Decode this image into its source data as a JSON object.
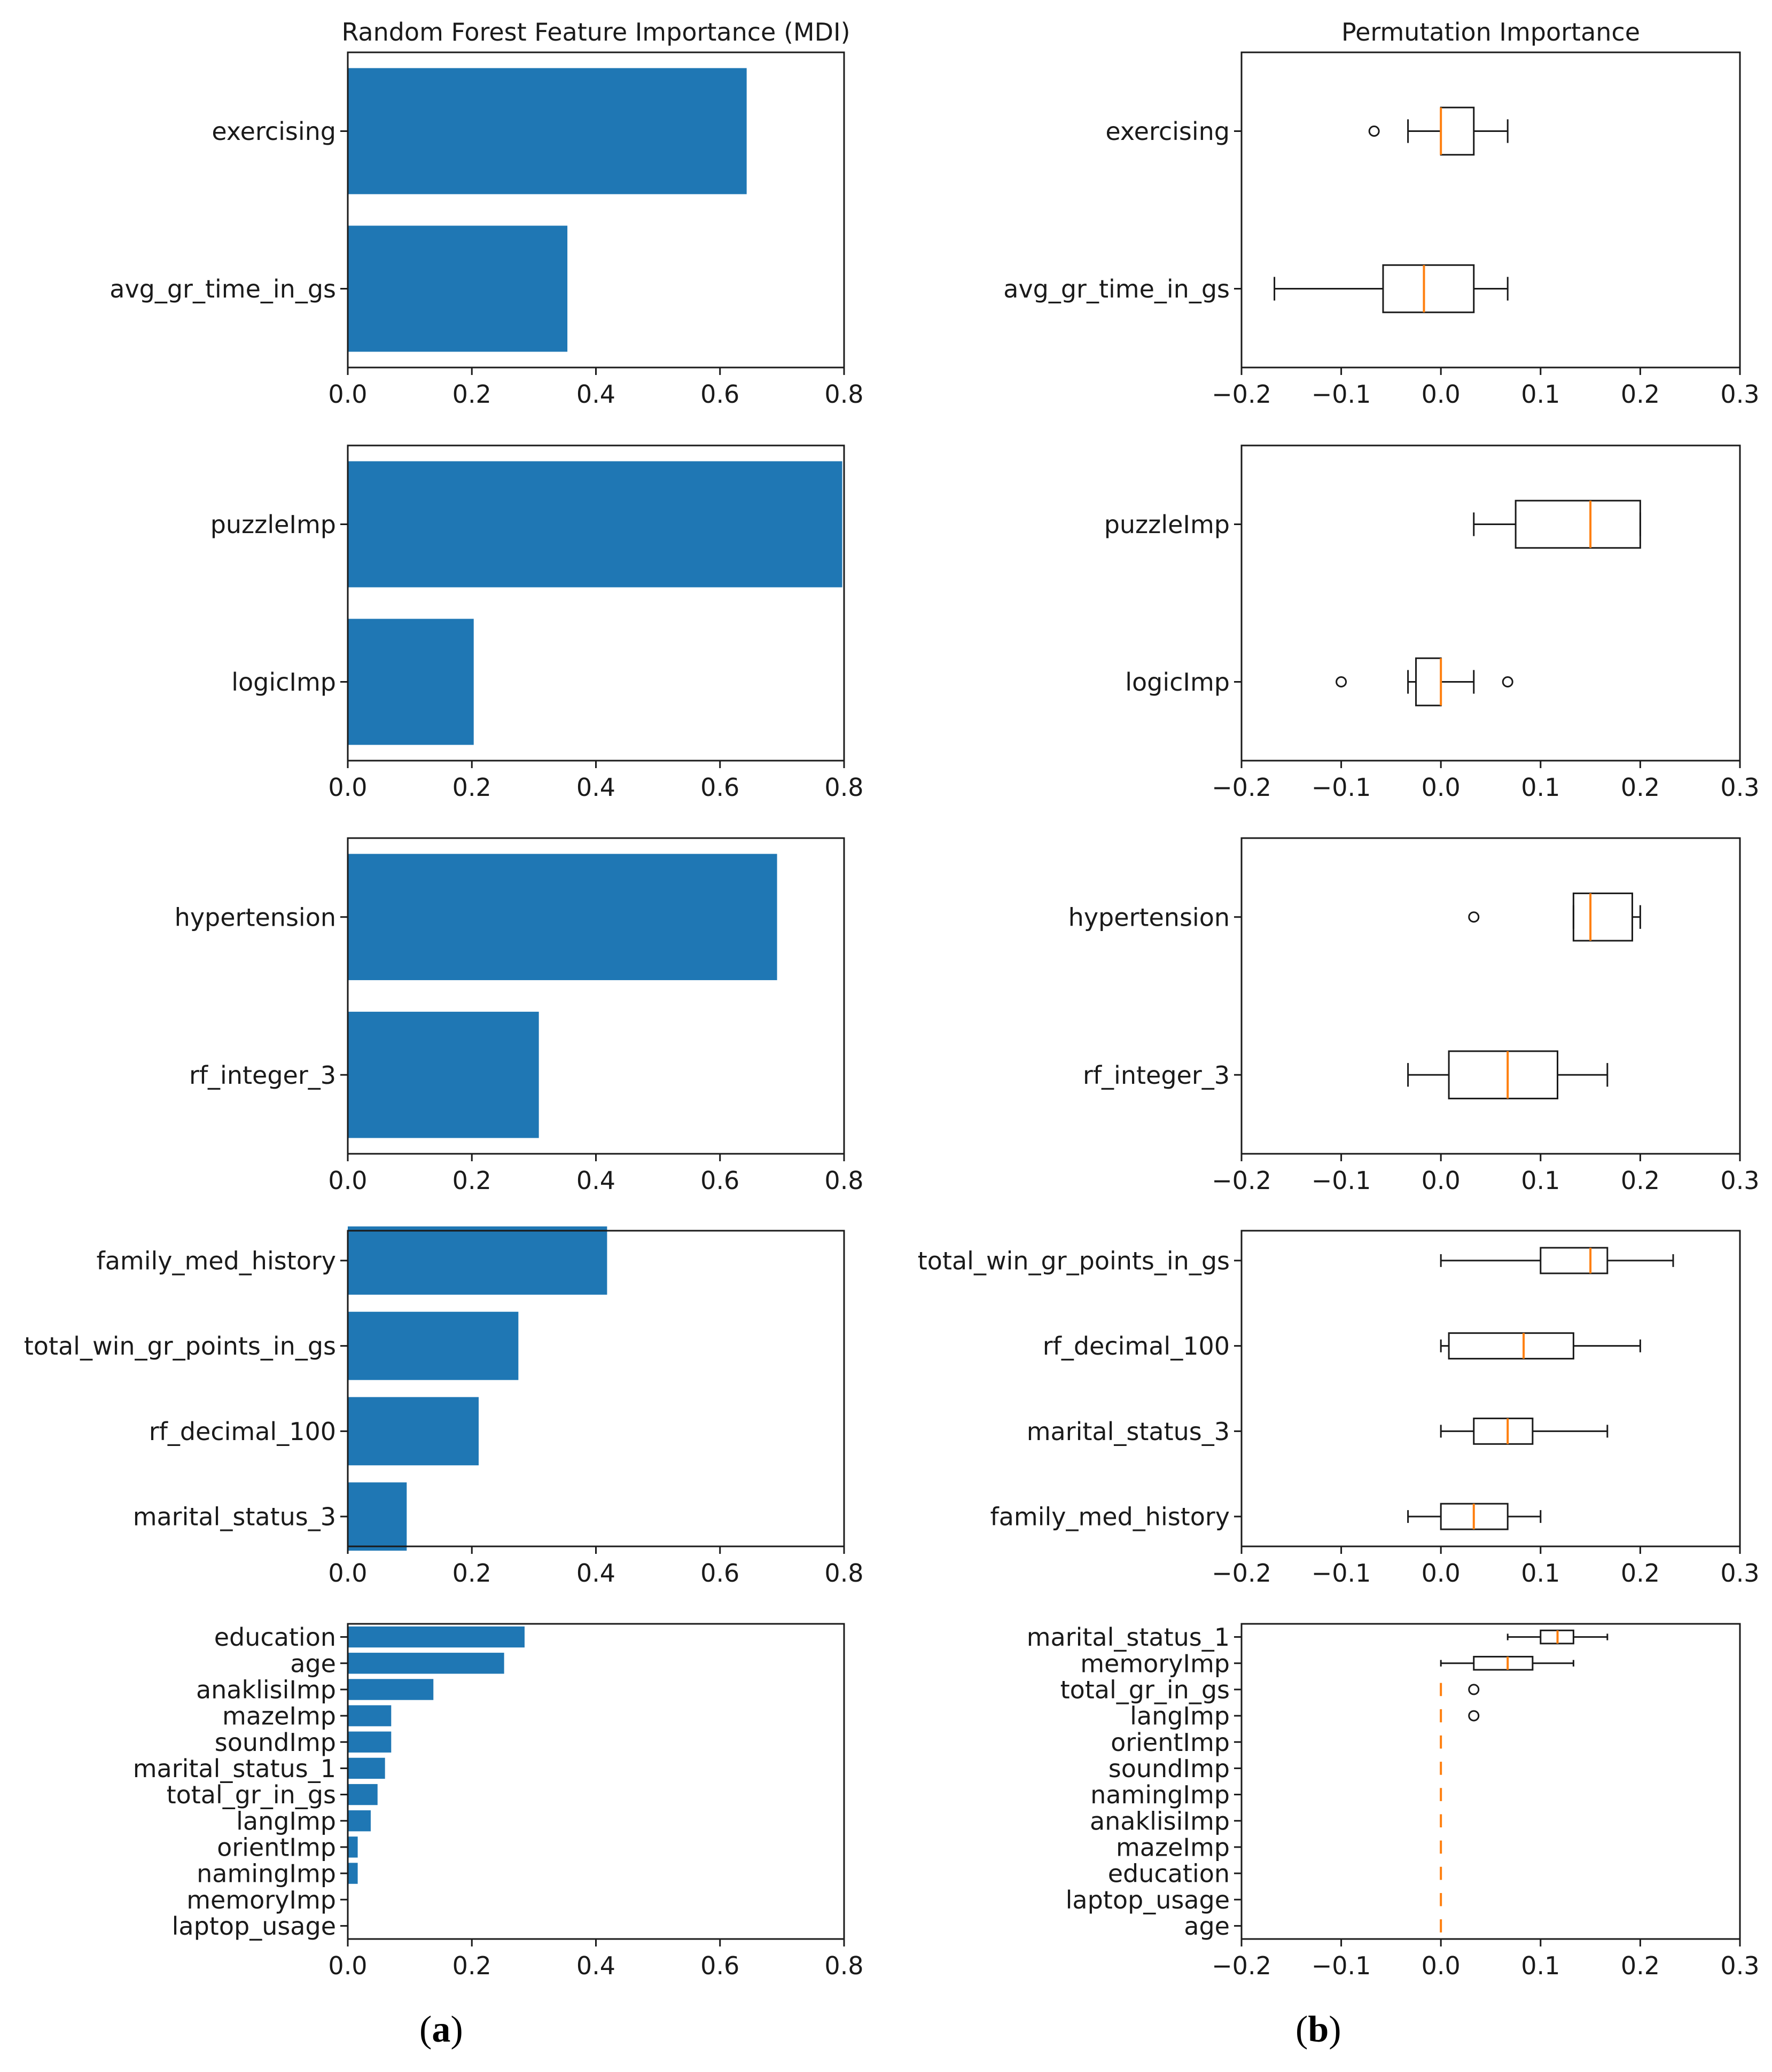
{
  "colors": {
    "bar": "#1f77b4",
    "median": "#ff7f0e",
    "axis": "#1a1a1a",
    "box": "#1a1a1a"
  },
  "panel_labels": {
    "a": {
      "open": "(",
      "letter": "a",
      "close": ")"
    },
    "b": {
      "open": "(",
      "letter": "b",
      "close": ")"
    }
  },
  "chart_data": [
    {
      "type": "bar",
      "orientation": "horizontal",
      "title": "Random Forest Feature Importance (MDI)",
      "categories": [
        "exercising",
        "avg_gr_time_in_gs"
      ],
      "values": [
        0.643,
        0.354
      ],
      "xlim": [
        0,
        0.8
      ],
      "xticks": [
        0.0,
        0.2,
        0.4,
        0.6,
        0.8
      ],
      "xtick_labels": [
        "0.0",
        "0.2",
        "0.4",
        "0.6",
        "0.8"
      ]
    },
    {
      "type": "box",
      "orientation": "horizontal",
      "title": "Permutation Importance",
      "categories": [
        "exercising",
        "avg_gr_time_in_gs"
      ],
      "boxes": [
        {
          "whislo": -0.033,
          "q1": 0.0,
          "med": 0.0,
          "q3": 0.033,
          "whishi": 0.067,
          "fliers": [
            -0.067
          ]
        },
        {
          "whislo": -0.167,
          "q1": -0.058,
          "med": -0.017,
          "q3": 0.033,
          "whishi": 0.067,
          "fliers": []
        }
      ],
      "xlim": [
        -0.2,
        0.3
      ],
      "xticks": [
        -0.2,
        -0.1,
        0.0,
        0.1,
        0.2,
        0.3
      ],
      "xtick_labels": [
        "−0.2",
        "−0.1",
        "0.0",
        "0.1",
        "0.2",
        "0.3"
      ]
    },
    {
      "type": "bar",
      "orientation": "horizontal",
      "title": "",
      "categories": [
        "puzzleImp",
        "logicImp"
      ],
      "values": [
        0.797,
        0.203
      ],
      "xlim": [
        0,
        0.8
      ],
      "xticks": [
        0.0,
        0.2,
        0.4,
        0.6,
        0.8
      ],
      "xtick_labels": [
        "0.0",
        "0.2",
        "0.4",
        "0.6",
        "0.8"
      ]
    },
    {
      "type": "box",
      "orientation": "horizontal",
      "title": "",
      "categories": [
        "puzzleImp",
        "logicImp"
      ],
      "boxes": [
        {
          "whislo": 0.033,
          "q1": 0.075,
          "med": 0.15,
          "q3": 0.2,
          "whishi": 0.2,
          "fliers": []
        },
        {
          "whislo": -0.033,
          "q1": -0.025,
          "med": 0.0,
          "q3": 0.0,
          "whishi": 0.033,
          "fliers": [
            -0.1,
            0.067
          ]
        }
      ],
      "xlim": [
        -0.2,
        0.3
      ],
      "xticks": [
        -0.2,
        -0.1,
        0.0,
        0.1,
        0.2,
        0.3
      ],
      "xtick_labels": [
        "−0.2",
        "−0.1",
        "0.0",
        "0.1",
        "0.2",
        "0.3"
      ]
    },
    {
      "type": "bar",
      "orientation": "horizontal",
      "title": "",
      "categories": [
        "hypertension",
        "rf_integer_3"
      ],
      "values": [
        0.692,
        0.308
      ],
      "xlim": [
        0,
        0.8
      ],
      "xticks": [
        0.0,
        0.2,
        0.4,
        0.6,
        0.8
      ],
      "xtick_labels": [
        "0.0",
        "0.2",
        "0.4",
        "0.6",
        "0.8"
      ]
    },
    {
      "type": "box",
      "orientation": "horizontal",
      "title": "",
      "categories": [
        "hypertension",
        "rf_integer_3"
      ],
      "boxes": [
        {
          "whislo": 0.133,
          "q1": 0.133,
          "med": 0.15,
          "q3": 0.192,
          "whishi": 0.2,
          "fliers": [
            0.033
          ]
        },
        {
          "whislo": -0.033,
          "q1": 0.008,
          "med": 0.067,
          "q3": 0.117,
          "whishi": 0.167,
          "fliers": []
        }
      ],
      "xlim": [
        -0.2,
        0.3
      ],
      "xticks": [
        -0.2,
        -0.1,
        0.0,
        0.1,
        0.2,
        0.3
      ],
      "xtick_labels": [
        "−0.2",
        "−0.1",
        "0.0",
        "0.1",
        "0.2",
        "0.3"
      ]
    },
    {
      "type": "bar",
      "orientation": "horizontal",
      "title": "",
      "categories": [
        "family_med_history",
        "total_win_gr_points_in_gs",
        "rf_decimal_100",
        "marital_status_3"
      ],
      "values": [
        0.418,
        0.275,
        0.211,
        0.095
      ],
      "xlim": [
        0,
        0.8
      ],
      "xticks": [
        0.0,
        0.2,
        0.4,
        0.6,
        0.8
      ],
      "xtick_labels": [
        "0.0",
        "0.2",
        "0.4",
        "0.6",
        "0.8"
      ]
    },
    {
      "type": "box",
      "orientation": "horizontal",
      "title": "",
      "categories": [
        "total_win_gr_points_in_gs",
        "rf_decimal_100",
        "marital_status_3",
        "family_med_history"
      ],
      "boxes": [
        {
          "whislo": 0.0,
          "q1": 0.1,
          "med": 0.15,
          "q3": 0.167,
          "whishi": 0.233,
          "fliers": []
        },
        {
          "whislo": 0.0,
          "q1": 0.008,
          "med": 0.083,
          "q3": 0.133,
          "whishi": 0.2,
          "fliers": []
        },
        {
          "whislo": 0.0,
          "q1": 0.033,
          "med": 0.067,
          "q3": 0.092,
          "whishi": 0.167,
          "fliers": []
        },
        {
          "whislo": -0.033,
          "q1": 0.0,
          "med": 0.033,
          "q3": 0.067,
          "whishi": 0.1,
          "fliers": []
        }
      ],
      "xlim": [
        -0.2,
        0.3
      ],
      "xticks": [
        -0.2,
        -0.1,
        0.0,
        0.1,
        0.2,
        0.3
      ],
      "xtick_labels": [
        "−0.2",
        "−0.1",
        "0.0",
        "0.1",
        "0.2",
        "0.3"
      ]
    },
    {
      "type": "bar",
      "orientation": "horizontal",
      "title": "",
      "categories": [
        "education",
        "age",
        "anaklisiImp",
        "mazeImp",
        "soundImp",
        "marital_status_1",
        "total_gr_in_gs",
        "langImp",
        "orientImp",
        "namingImp",
        "memoryImp",
        "laptop_usage"
      ],
      "values": [
        0.285,
        0.252,
        0.138,
        0.07,
        0.07,
        0.06,
        0.048,
        0.037,
        0.016,
        0.016,
        0.0,
        0.0
      ],
      "xlim": [
        0,
        0.8
      ],
      "xticks": [
        0.0,
        0.2,
        0.4,
        0.6,
        0.8
      ],
      "xtick_labels": [
        "0.0",
        "0.2",
        "0.4",
        "0.6",
        "0.8"
      ]
    },
    {
      "type": "box",
      "orientation": "horizontal",
      "title": "",
      "categories": [
        "marital_status_1",
        "memoryImp",
        "total_gr_in_gs",
        "langImp",
        "orientImp",
        "soundImp",
        "namingImp",
        "anaklisiImp",
        "mazeImp",
        "education",
        "laptop_usage",
        "age"
      ],
      "boxes": [
        {
          "whislo": 0.067,
          "q1": 0.1,
          "med": 0.117,
          "q3": 0.133,
          "whishi": 0.167,
          "fliers": []
        },
        {
          "whislo": 0.0,
          "q1": 0.033,
          "med": 0.067,
          "q3": 0.092,
          "whishi": 0.133,
          "fliers": []
        },
        {
          "whislo": 0.0,
          "q1": 0.0,
          "med": 0.0,
          "q3": 0.0,
          "whishi": 0.0,
          "fliers": [
            0.033
          ]
        },
        {
          "whislo": 0.0,
          "q1": 0.0,
          "med": 0.0,
          "q3": 0.0,
          "whishi": 0.0,
          "fliers": [
            0.033
          ]
        },
        {
          "whislo": 0.0,
          "q1": 0.0,
          "med": 0.0,
          "q3": 0.0,
          "whishi": 0.0,
          "fliers": []
        },
        {
          "whislo": 0.0,
          "q1": 0.0,
          "med": 0.0,
          "q3": 0.0,
          "whishi": 0.0,
          "fliers": []
        },
        {
          "whislo": 0.0,
          "q1": 0.0,
          "med": 0.0,
          "q3": 0.0,
          "whishi": 0.0,
          "fliers": []
        },
        {
          "whislo": 0.0,
          "q1": 0.0,
          "med": 0.0,
          "q3": 0.0,
          "whishi": 0.0,
          "fliers": []
        },
        {
          "whislo": 0.0,
          "q1": 0.0,
          "med": 0.0,
          "q3": 0.0,
          "whishi": 0.0,
          "fliers": []
        },
        {
          "whislo": 0.0,
          "q1": 0.0,
          "med": 0.0,
          "q3": 0.0,
          "whishi": 0.0,
          "fliers": []
        },
        {
          "whislo": 0.0,
          "q1": 0.0,
          "med": 0.0,
          "q3": 0.0,
          "whishi": 0.0,
          "fliers": []
        },
        {
          "whislo": 0.0,
          "q1": 0.0,
          "med": 0.0,
          "q3": 0.0,
          "whishi": 0.0,
          "fliers": []
        }
      ],
      "xlim": [
        -0.2,
        0.3
      ],
      "xticks": [
        -0.2,
        -0.1,
        0.0,
        0.1,
        0.2,
        0.3
      ],
      "xtick_labels": [
        "−0.2",
        "−0.1",
        "0.0",
        "0.1",
        "0.2",
        "0.3"
      ]
    }
  ]
}
